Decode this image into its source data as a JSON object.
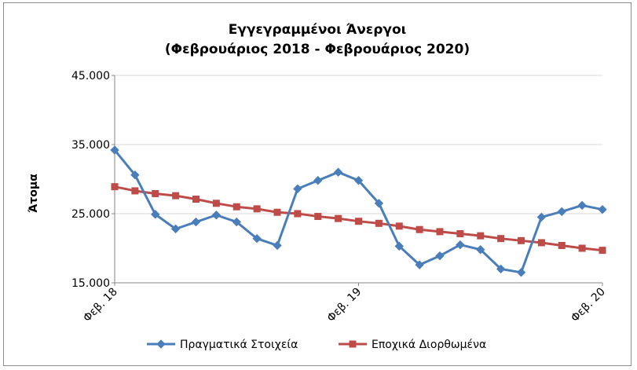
{
  "chart_data": {
    "type": "line",
    "title_line1": "Εγγεγραμμένοι Άνεργοι",
    "title_line2": "(Φεβρουάριος 2018 - Φεβρουάριος 2020)",
    "ylabel": "Άτομα",
    "xlabel": "",
    "ylim": [
      15000,
      45000
    ],
    "yticks": [
      15000,
      25000,
      35000,
      45000
    ],
    "ytick_labels": [
      "15.000",
      "25.000",
      "35.000",
      "45.000"
    ],
    "grid": true,
    "legend_position": "bottom",
    "x_tick_labels": [
      {
        "index": 0,
        "label": "Φεβ. 18"
      },
      {
        "index": 12,
        "label": "Φεβ. 19"
      },
      {
        "index": 24,
        "label": "Φεβ. 20"
      }
    ],
    "x_count": 25,
    "series": [
      {
        "name": "Πραγματικά Στοιχεία",
        "color": "#4a7ebb",
        "marker": "diamond",
        "values": [
          34200,
          30600,
          24900,
          22800,
          23800,
          24800,
          23800,
          21400,
          20400,
          28600,
          29800,
          31000,
          29800,
          26500,
          20300,
          17600,
          18900,
          20500,
          19800,
          17000,
          16500,
          24500,
          25300,
          26200,
          25600
        ]
      },
      {
        "name": "Εποχικά Διορθωμένα",
        "color": "#be4b48",
        "marker": "square",
        "values": [
          28900,
          28300,
          27900,
          27600,
          27100,
          26500,
          26000,
          25700,
          25200,
          25000,
          24600,
          24300,
          23900,
          23600,
          23200,
          22700,
          22400,
          22100,
          21800,
          21400,
          21100,
          20800,
          20400,
          20000,
          19700
        ]
      }
    ]
  }
}
